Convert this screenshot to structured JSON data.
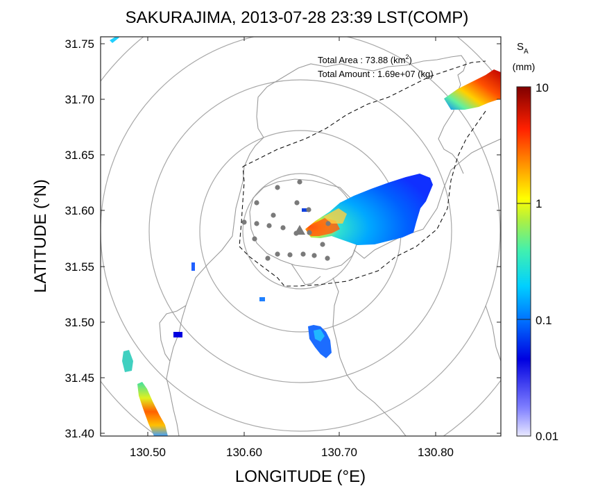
{
  "title": "SAKURAJIMA, 2013-07-28 23:39 LST(COMP)",
  "xlabel": "LONGITUDE (°E)",
  "ylabel": "LATITUDE (°N)",
  "xticks": [
    "130.50",
    "130.60",
    "130.70",
    "130.80"
  ],
  "yticks": [
    "31.75",
    "31.70",
    "31.65",
    "31.60",
    "31.55",
    "31.50",
    "31.45",
    "31.40"
  ],
  "map_extent": {
    "lon_range": [
      130.45,
      130.865
    ],
    "lat_range": [
      31.397,
      31.76
    ]
  },
  "annotation": {
    "area_label": "Total Area   : 73.88 (km",
    "area_sup": "2",
    "area_tail": ")",
    "amount_label": "Total Amount : 1.69e+07 (kg)"
  },
  "colorbar": {
    "label_main": "S",
    "label_sub": "A",
    "unit": "(mm)",
    "ticks": [
      "10",
      "1",
      "0.1",
      "0.01"
    ],
    "scale": "log",
    "range": [
      0.01,
      10
    ]
  },
  "symbols": {
    "volcano_icon": "triangle-icon",
    "station_marker": "gray-dot",
    "range_rings": 5
  },
  "colors": {
    "coastline": "#9a9a9a",
    "range_ring": "#a8a8a8",
    "station": "#7a7a7a",
    "volcano": "#7a7a7a"
  }
}
